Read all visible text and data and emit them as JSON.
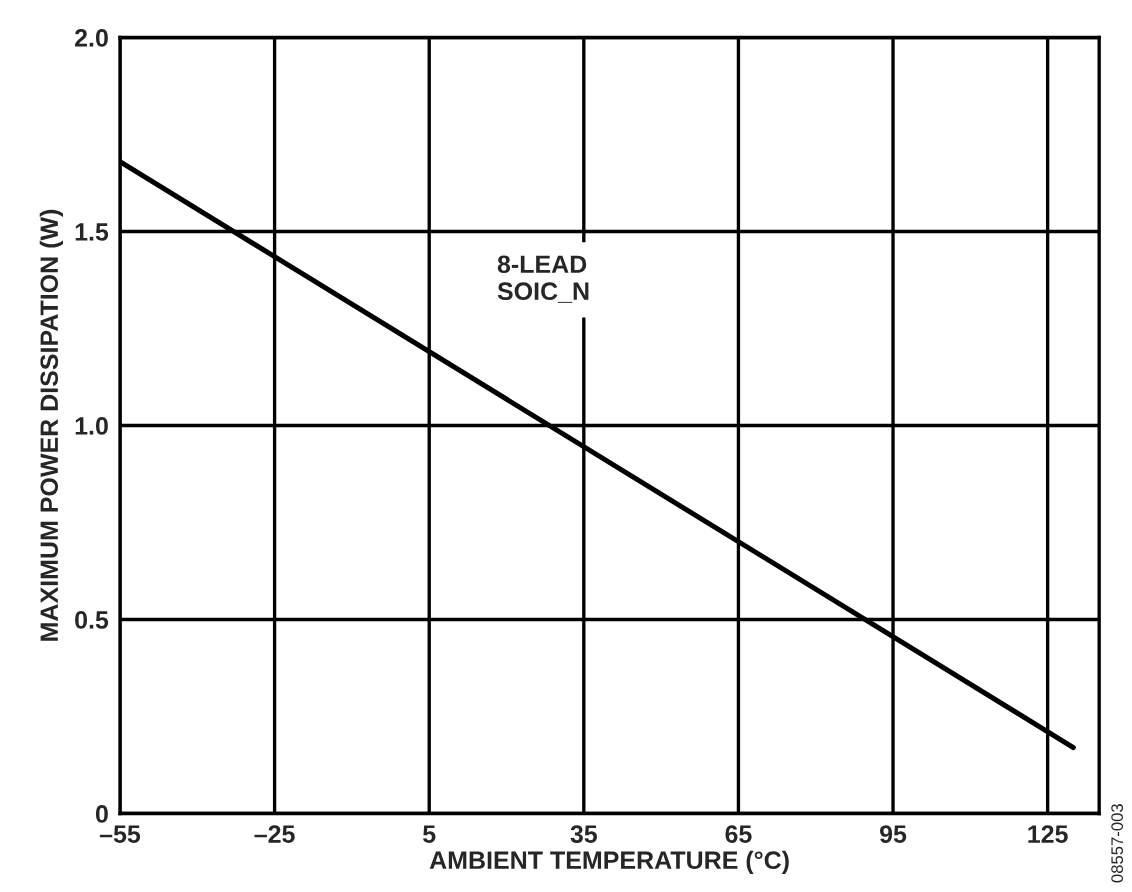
{
  "chart_data": {
    "type": "line",
    "xlabel": "AMBIENT TEMPERATURE (°C)",
    "ylabel": "MAXIMUM POWER DISSIPATION (W)",
    "x": [
      -55,
      130
    ],
    "series": [
      {
        "color": "#000000",
        "values": [
          1.68,
          0.17
        ]
      }
    ],
    "xlim": [
      -55,
      135
    ],
    "xticks": [
      {
        "value": -55,
        "label": "–55"
      },
      {
        "value": -25,
        "label": "–25"
      },
      5,
      35,
      65,
      95,
      125
    ],
    "ylim": [
      0,
      2.0
    ],
    "yticks": [
      {
        "value": 0,
        "label": "0"
      },
      0.5,
      {
        "value": 1.0,
        "label": "1.0"
      },
      1.5,
      {
        "value": 2.0,
        "label": "2.0"
      }
    ],
    "grid": true,
    "annotations": [
      "8-LEAD\nSOIC_N",
      "08557-003"
    ]
  }
}
